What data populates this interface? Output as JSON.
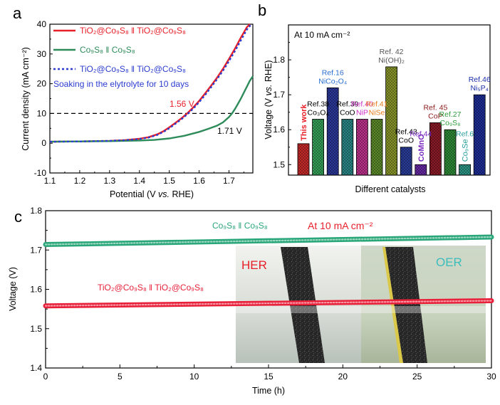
{
  "chart_data": [
    {
      "type": "line",
      "panel": "a",
      "xlabel_parts": [
        "Potential (V ",
        "vs.",
        " RHE)"
      ],
      "ylabel": "Current density (mA cm⁻²)",
      "xlim": [
        1.1,
        1.78
      ],
      "ylim": [
        -10,
        40
      ],
      "xticks": [
        "1.1",
        "1.2",
        "1.3",
        "1.4",
        "1.5",
        "1.6",
        "1.7"
      ],
      "yticks": [
        "-10",
        "0",
        "10",
        "20",
        "30",
        "40"
      ],
      "series": [
        {
          "name": "TiO₂@Co₉S₈ ǁ TiO₂@Co₉S₈",
          "color": "#e8202a",
          "style": "solid",
          "x": [
            1.1,
            1.2,
            1.3,
            1.35,
            1.4,
            1.43,
            1.46,
            1.48,
            1.5,
            1.52,
            1.54,
            1.56,
            1.58,
            1.6,
            1.62,
            1.64,
            1.66,
            1.68,
            1.7,
            1.72,
            1.74,
            1.76,
            1.77
          ],
          "y": [
            0.5,
            0.6,
            0.8,
            1.0,
            1.5,
            2.0,
            3.0,
            4.0,
            5.3,
            6.8,
            8.3,
            10.0,
            12.0,
            14.2,
            16.7,
            19.3,
            22.0,
            25.0,
            28.3,
            31.8,
            35.5,
            39.0,
            40.0
          ]
        },
        {
          "name": "Co₉S₈ ǁ Co₉S₈",
          "color": "#2e8b5a",
          "style": "solid",
          "x": [
            1.1,
            1.2,
            1.3,
            1.4,
            1.45,
            1.5,
            1.55,
            1.6,
            1.63,
            1.66,
            1.68,
            1.7,
            1.71,
            1.72,
            1.73,
            1.74,
            1.75,
            1.76,
            1.77,
            1.78
          ],
          "y": [
            0.5,
            0.6,
            0.7,
            0.9,
            1.1,
            1.6,
            2.5,
            3.8,
            4.8,
            5.9,
            7.0,
            8.8,
            10.0,
            11.5,
            13.2,
            15.0,
            17.0,
            19.0,
            21.0,
            22.5
          ]
        },
        {
          "name": "TiO₂@Co₉S₈ ǁ TiO₂@Co₉S₈",
          "note": "Soaking in the elytrolyte for 10 days",
          "color": "#2b3ccf",
          "style": "dotted",
          "x": [
            1.1,
            1.2,
            1.3,
            1.35,
            1.4,
            1.43,
            1.46,
            1.48,
            1.5,
            1.52,
            1.54,
            1.56,
            1.58,
            1.6,
            1.62,
            1.64,
            1.66,
            1.68,
            1.7,
            1.72,
            1.74,
            1.76,
            1.775
          ],
          "y": [
            0.5,
            0.6,
            0.8,
            1.0,
            1.4,
            1.9,
            2.8,
            3.8,
            5.0,
            6.5,
            8.0,
            9.7,
            11.6,
            13.8,
            16.2,
            18.8,
            21.5,
            24.4,
            27.6,
            31.0,
            34.6,
            38.2,
            40.0
          ]
        }
      ],
      "reference_line": {
        "y": 10,
        "style": "dashed",
        "color": "#000000"
      },
      "annotations": [
        {
          "text": "1.56 V",
          "color": "#e8202a"
        },
        {
          "text": "1.71 V",
          "color": "#000000"
        }
      ],
      "legend_lines": [
        {
          "text": "TiO₂@Co₉S₈ ǁ TiO₂@Co₉S₈",
          "color": "#e8202a"
        },
        {
          "text": "Co₉S₈  ǁ Co₉S₈",
          "color": "#2e8b5a"
        },
        {
          "text": "TiO₂@Co₉S₈ ǁ TiO₂@Co₉S₈",
          "color": "#2b3ccf"
        },
        {
          "text": "Soaking in the elytrolyte for 10 days",
          "color": "#2b3ccf"
        }
      ]
    },
    {
      "type": "bar",
      "panel": "b",
      "title": "At 10 mA cm⁻²",
      "xlabel": "Different catalysts",
      "ylabel_parts": [
        "Voltage  (V ",
        "vs.",
        " RHE)"
      ],
      "ylim": [
        1.47,
        1.9
      ],
      "yticks": [
        "1.5",
        "1.6",
        "1.7",
        "1.8"
      ],
      "bars": [
        {
          "value": 1.56,
          "color": "#cc2b2b",
          "labels": [
            {
              "text": "This work",
              "color": "#e8202a",
              "rotated": true,
              "bold": true
            }
          ]
        },
        {
          "value": 1.63,
          "color": "#36a45a",
          "labels": [
            {
              "text": "Ref.38",
              "color": "#000000"
            },
            {
              "text": "Co₃O₄",
              "color": "#000000"
            }
          ]
        },
        {
          "value": 1.72,
          "color": "#2d3a9e",
          "labels": [
            {
              "text": "Ref.16",
              "color": "#2a6fd0"
            },
            {
              "text": "NiCo₂O₄",
              "color": "#2a6fd0"
            }
          ]
        },
        {
          "value": 1.63,
          "color": "#2b8a8a",
          "labels": [
            {
              "text": "Ref.39",
              "color": "#000000"
            },
            {
              "text": "CoO",
              "color": "#000000"
            }
          ]
        },
        {
          "value": 1.63,
          "color": "#c2328f",
          "labels": [
            {
              "text": "Ref.40",
              "color": "#d02fc8"
            },
            {
              "text": "NiP",
              "color": "#d02fc8"
            }
          ]
        },
        {
          "value": 1.63,
          "color": "#5f8f2a",
          "labels": [
            {
              "text": "Ref.41",
              "color": "#e87b1c"
            },
            {
              "text": "NiSe",
              "color": "#e87b1c"
            }
          ]
        },
        {
          "value": 1.78,
          "color": "#8b9a2a",
          "labels": [
            {
              "text": "Ref. 42",
              "color": "#555555"
            },
            {
              "text": "Ni(OH)₂",
              "color": "#555555"
            }
          ]
        },
        {
          "value": 1.55,
          "color": "#2a3f9e",
          "labels": [
            {
              "text": "Ref.43",
              "color": "#000000"
            },
            {
              "text": "CoO",
              "color": "#000000"
            }
          ]
        },
        {
          "value": 1.5,
          "color": "#6a2aa8",
          "labels": [
            {
              "text": "Ref.44",
              "color": "#7a2bc0"
            },
            {
              "text": "CoMnO",
              "color": "#7a2bc0",
              "rotated": true,
              "bold": true
            }
          ]
        },
        {
          "value": 1.62,
          "color": "#8f1c28",
          "labels": [
            {
              "text": "Ref. 45",
              "color": "#8b1a1a"
            },
            {
              "text": "CoP",
              "color": "#8b1a1a"
            }
          ]
        },
        {
          "value": 1.6,
          "color": "#2f8f3a",
          "labels": [
            {
              "text": "Ref.27",
              "color": "#2e9a3a"
            },
            {
              "text": "Co₉S₈",
              "color": "#2e9a3a"
            }
          ]
        },
        {
          "value": 1.5,
          "color": "#2d9a8a",
          "labels": [
            {
              "text": "Ref.6",
              "color": "#2aa0a0"
            },
            {
              "text": "Co₉Se",
              "color": "#2aa0a0",
              "rotated": true
            }
          ]
        },
        {
          "value": 1.7,
          "color": "#1f2f9a",
          "labels": [
            {
              "text": "Ref.46",
              "color": "#1c2fa8"
            },
            {
              "text": "Ni₅P₄",
              "color": "#1c2fa8"
            }
          ]
        }
      ]
    },
    {
      "type": "line",
      "panel": "c",
      "title": "At 10 mA cm⁻²",
      "xlabel": "Time (h)",
      "ylabel": "Voltage (V)",
      "xlim": [
        0,
        30
      ],
      "ylim": [
        1.4,
        1.8
      ],
      "xticks": [
        "0",
        "5",
        "10",
        "15",
        "20",
        "25",
        "30"
      ],
      "yticks": [
        "1.4",
        "1.5",
        "1.6",
        "1.7",
        "1.8"
      ],
      "series": [
        {
          "name": "Co₉S₈ ǁ Co₉S₈",
          "color": "#2aa77a",
          "x": [
            0,
            30
          ],
          "y": [
            1.714,
            1.733
          ]
        },
        {
          "name": "TiO₂@Co₉S₈ ǁ TiO₂@Co₉S₈",
          "color": "#e8203a",
          "x": [
            0,
            30
          ],
          "y": [
            1.558,
            1.571
          ]
        }
      ],
      "inset_labels": {
        "her": "HER",
        "oer": "OER"
      }
    }
  ],
  "panels": {
    "a": "a",
    "b": "b",
    "c": "c"
  }
}
